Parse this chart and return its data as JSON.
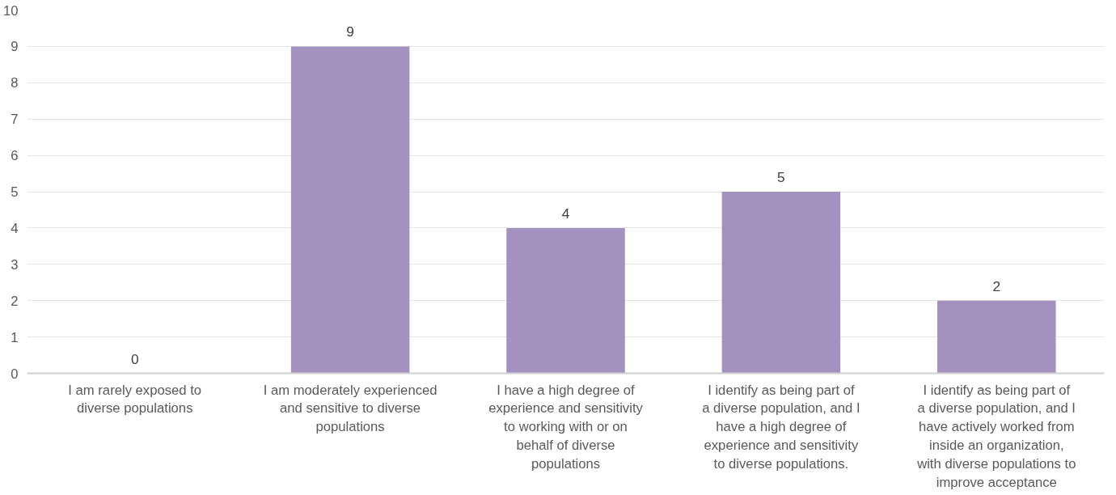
{
  "chart_data": {
    "type": "bar",
    "categories": [
      "I am rarely exposed to diverse populations",
      "I am moderately experienced and sensitive to diverse populations",
      "I have a high degree of experience and sensitivity to working with or on behalf of diverse populations",
      "I identify as being part of a diverse population, and I have a high degree of experience and sensitivity to diverse populations.",
      "I identify as being part of a diverse population, and I have actively worked from inside an organization, with diverse populations to improve acceptance"
    ],
    "values": [
      0,
      9,
      4,
      5,
      2
    ],
    "color": "#a391c0",
    "ylim": [
      0,
      10
    ],
    "yticks": [
      0,
      1,
      2,
      3,
      4,
      5,
      6,
      7,
      8,
      9,
      10
    ],
    "grid": "y",
    "data_labels": true
  }
}
